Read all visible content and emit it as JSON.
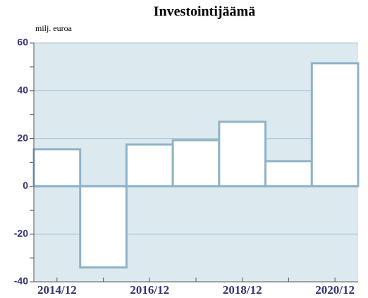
{
  "chart_data": {
    "type": "bar",
    "title": "Investointijäämä",
    "y_label": "milj. euroa",
    "categories": [
      "2014/12",
      null,
      "2016/12",
      null,
      "2018/12",
      null,
      "2020/12"
    ],
    "values": [
      15.5,
      -34,
      17.5,
      19.3,
      27,
      10.5,
      51.5
    ],
    "color": "#ffffff",
    "edge_color": "#8fb3c8",
    "background": "#dce9ee",
    "ylim": [
      -40,
      60
    ],
    "yticks": [
      -40,
      -20,
      0,
      20,
      40,
      60
    ],
    "yticks_minor": [
      -30,
      -10,
      10,
      30,
      50
    ],
    "grid": true
  }
}
